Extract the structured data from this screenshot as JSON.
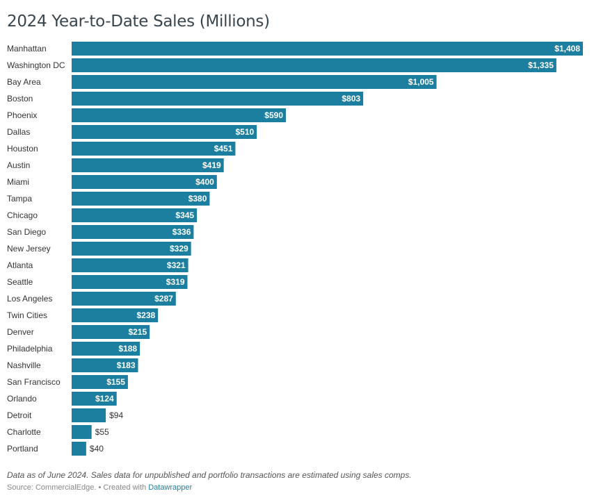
{
  "title": "2024 Year-to-Date Sales (Millions)",
  "notes": "Data as of June 2024. Sales data for unpublished and portfolio transactions are estimated using sales comps.",
  "footer": {
    "source": "Source: CommercialEdge.",
    "separator": "•",
    "created_with": "Created with",
    "tool": "Datawrapper"
  },
  "colors": {
    "bar": "#1d7fa0",
    "title": "#394650",
    "link": "#1d81a2"
  },
  "chart_data": {
    "type": "bar",
    "orientation": "horizontal",
    "title": "2024 Year-to-Date Sales (Millions)",
    "value_prefix": "$",
    "categories": [
      "Manhattan",
      "Washington DC",
      "Bay Area",
      "Boston",
      "Phoenix",
      "Dallas",
      "Houston",
      "Austin",
      "Miami",
      "Tampa",
      "Chicago",
      "San Diego",
      "New Jersey",
      "Atlanta",
      "Seattle",
      "Los Angeles",
      "Twin Cities",
      "Denver",
      "Philadelphia",
      "Nashville",
      "San Francisco",
      "Orlando",
      "Detroit",
      "Charlotte",
      "Portland"
    ],
    "values": [
      1408,
      1335,
      1005,
      803,
      590,
      510,
      451,
      419,
      400,
      380,
      345,
      336,
      329,
      321,
      319,
      287,
      238,
      215,
      188,
      183,
      155,
      124,
      94,
      55,
      40
    ],
    "value_labels": [
      "$1,408",
      "$1,335",
      "$1,005",
      "$803",
      "$590",
      "$510",
      "$451",
      "$419",
      "$400",
      "$380",
      "$345",
      "$336",
      "$329",
      "$321",
      "$319",
      "$287",
      "$238",
      "$215",
      "$188",
      "$183",
      "$155",
      "$124",
      "$94",
      "$55",
      "$40"
    ],
    "xlim": [
      0,
      1408
    ],
    "grid": false,
    "legend": "none"
  }
}
